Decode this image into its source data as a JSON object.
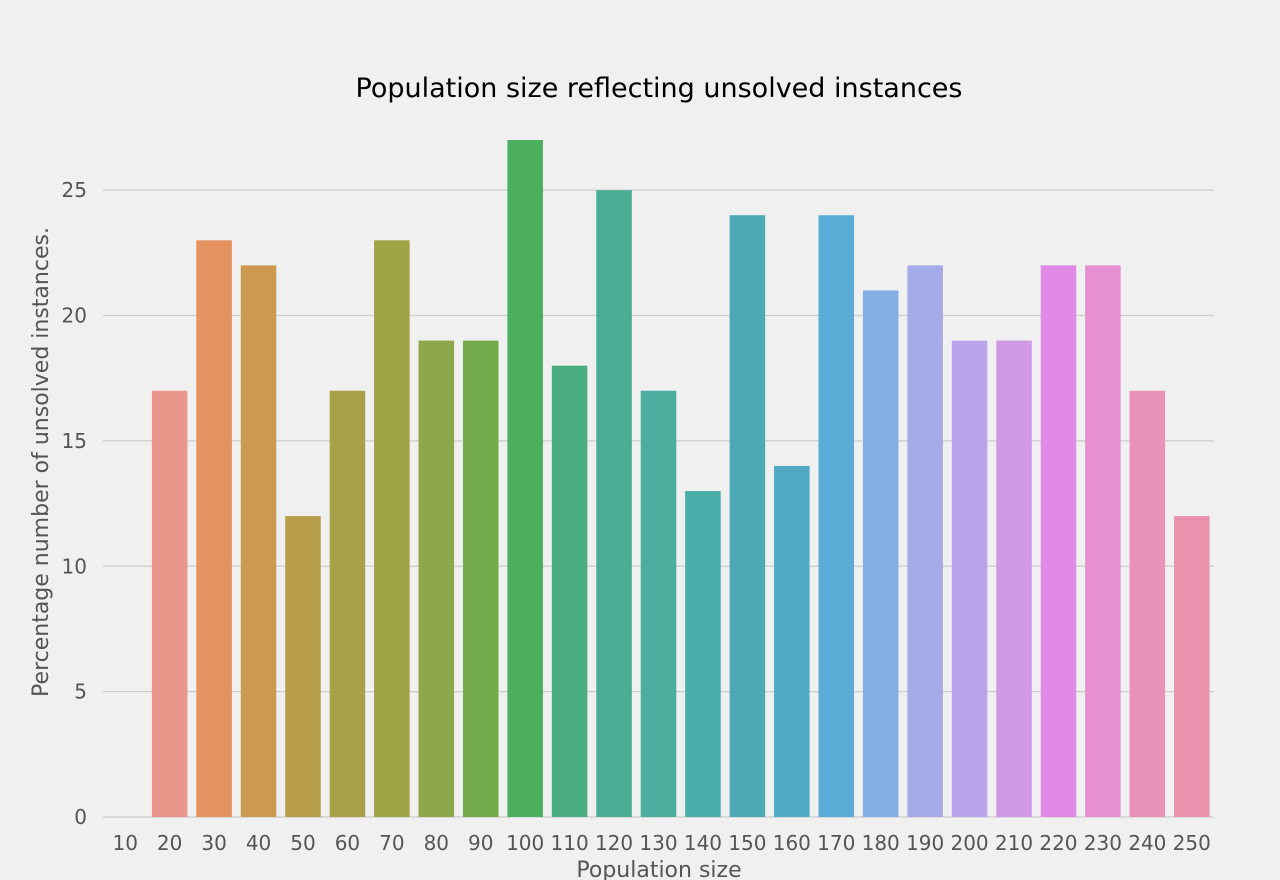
{
  "chart_data": {
    "type": "bar",
    "title": "Population size reflecting unsolved instances",
    "xlabel": "Population size",
    "ylabel": "Percentage number of unsolved instances.",
    "categories": [
      "10",
      "20",
      "30",
      "40",
      "50",
      "60",
      "70",
      "80",
      "90",
      "100",
      "110",
      "120",
      "130",
      "140",
      "150",
      "160",
      "170",
      "180",
      "190",
      "200",
      "210",
      "220",
      "230",
      "240",
      "250"
    ],
    "values": [
      0,
      17,
      23,
      22,
      12,
      17,
      23,
      19,
      19,
      27,
      18,
      25,
      17,
      13,
      24,
      14,
      24,
      21,
      22,
      19,
      19,
      22,
      22,
      17,
      12
    ],
    "colors": [
      "#f0f0f0",
      "#e9968b",
      "#e4925f",
      "#cb9a50",
      "#b89d4a",
      "#a8a14a",
      "#9ea345",
      "#8ca84a",
      "#73ab4c",
      "#4caf60",
      "#4bae82",
      "#4aae95",
      "#4bae9f",
      "#4aaeaa",
      "#4baab5",
      "#50aac3",
      "#5aabd6",
      "#82aee3",
      "#a5abe9",
      "#bca4ea",
      "#cf99e6",
      "#e08ae6",
      "#e690d2",
      "#e892b9",
      "#e993af"
    ],
    "yticks": [
      "0",
      "5",
      "10",
      "15",
      "20",
      "25"
    ],
    "ylim": [
      0,
      27
    ],
    "grid": true
  }
}
